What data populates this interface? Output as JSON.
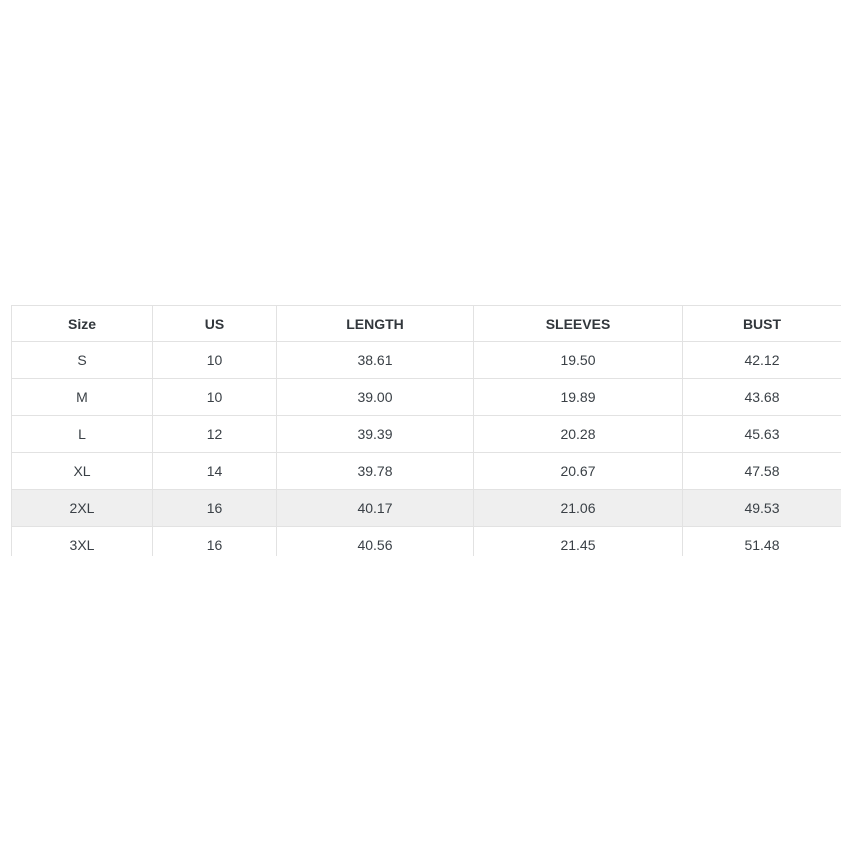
{
  "size_chart": {
    "columns": [
      "Size",
      "US",
      "LENGTH",
      "SLEEVES",
      "BUST"
    ],
    "rows": [
      [
        "S",
        "10",
        "38.61",
        "19.50",
        "42.12"
      ],
      [
        "M",
        "10",
        "39.00",
        "19.89",
        "43.68"
      ],
      [
        "L",
        "12",
        "39.39",
        "20.28",
        "45.63"
      ],
      [
        "XL",
        "14",
        "39.78",
        "20.67",
        "47.58"
      ],
      [
        "2XL",
        "16",
        "40.17",
        "21.06",
        "49.53"
      ],
      [
        "3XL",
        "16",
        "40.56",
        "21.45",
        "51.48"
      ]
    ],
    "highlighted_row_index": 4,
    "colors": {
      "border": "#e2e2e2",
      "header_text": "#32373c",
      "cell_text": "#3a4046",
      "highlight_row_bg": "#efefef",
      "page_background": "#ffffff"
    }
  }
}
